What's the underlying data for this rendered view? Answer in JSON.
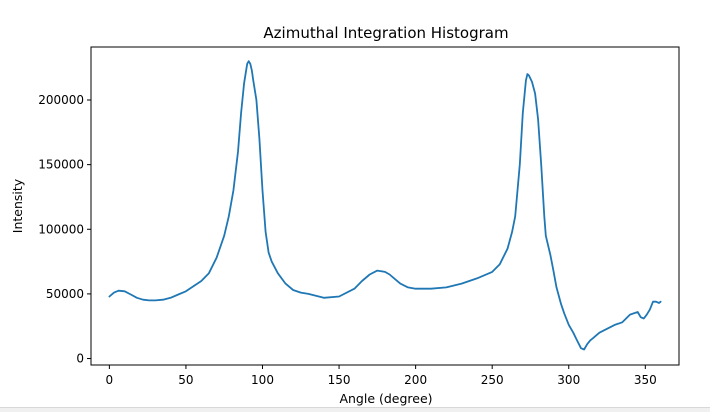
{
  "chart_data": {
    "type": "line",
    "title": "Azimuthal Integration Histogram",
    "xlabel": "Angle (degree)",
    "ylabel": "Intensity",
    "xlim": [
      -12,
      372
    ],
    "ylim": [
      -5000,
      241000
    ],
    "xticks": [
      0,
      50,
      100,
      150,
      200,
      250,
      300,
      350
    ],
    "yticks": [
      0,
      50000,
      100000,
      150000,
      200000
    ],
    "grid": false,
    "series": [
      {
        "color": "#1f77b4",
        "x": [
          0,
          3,
          6,
          10,
          14,
          18,
          22,
          26,
          30,
          35,
          40,
          45,
          50,
          55,
          60,
          65,
          70,
          75,
          78,
          81,
          84,
          86,
          88,
          90,
          91,
          92,
          93,
          94,
          96,
          98,
          100,
          102,
          104,
          106,
          110,
          115,
          120,
          125,
          130,
          140,
          150,
          160,
          165,
          170,
          175,
          180,
          183,
          186,
          190,
          195,
          200,
          210,
          220,
          230,
          240,
          250,
          255,
          260,
          263,
          265,
          268,
          270,
          272,
          273,
          274,
          276,
          278,
          280,
          282,
          284,
          285,
          288,
          290,
          292,
          295,
          297,
          300,
          303,
          305,
          308,
          310,
          312,
          314,
          316,
          318,
          320,
          325,
          330,
          335,
          340,
          345,
          347,
          349,
          351,
          353,
          355,
          357,
          359,
          360
        ],
        "values": [
          48000,
          51000,
          52500,
          52000,
          49500,
          47000,
          45500,
          45000,
          45000,
          45500,
          47000,
          49500,
          52000,
          56000,
          60000,
          66000,
          78000,
          95000,
          110000,
          130000,
          160000,
          190000,
          213000,
          228000,
          230000,
          228000,
          223000,
          215000,
          200000,
          170000,
          130000,
          98000,
          82000,
          75000,
          66000,
          58000,
          53000,
          51000,
          50000,
          47000,
          48000,
          54000,
          60000,
          65000,
          68000,
          67000,
          65000,
          62000,
          58000,
          55000,
          54000,
          54000,
          55000,
          58000,
          62000,
          67000,
          73000,
          85000,
          98000,
          110000,
          150000,
          190000,
          215000,
          220000,
          219000,
          214000,
          205000,
          185000,
          150000,
          110000,
          95000,
          80000,
          68000,
          55000,
          42000,
          35000,
          26000,
          20000,
          15000,
          8000,
          7000,
          11000,
          14000,
          16000,
          18000,
          20000,
          23000,
          26000,
          28000,
          34000,
          36000,
          32000,
          31000,
          34000,
          38000,
          44000,
          44000,
          43000,
          44000
        ]
      }
    ]
  }
}
